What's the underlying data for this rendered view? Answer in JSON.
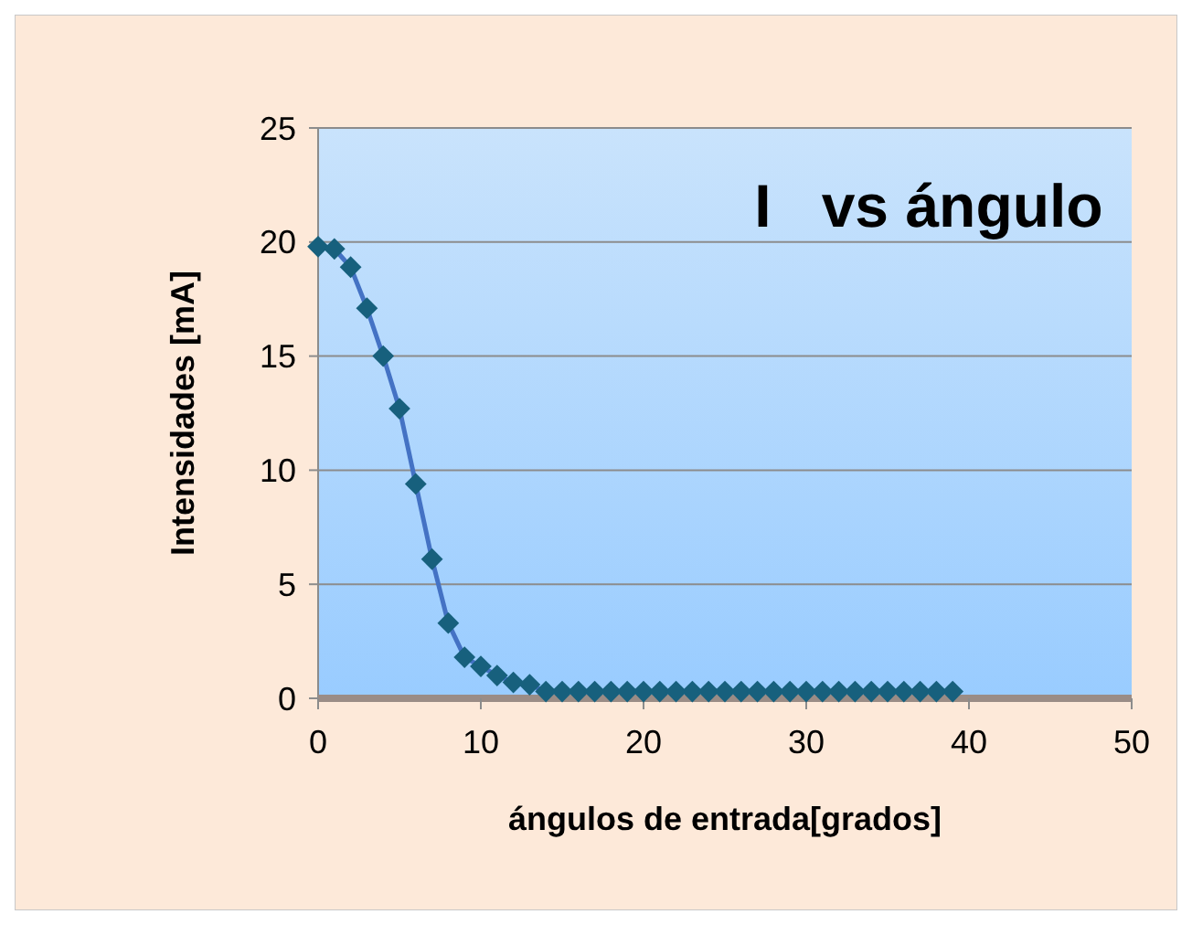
{
  "chart_data": {
    "type": "line",
    "title": "I   vs ángulo",
    "xlabel": "ángulos de entrada[grados]",
    "ylabel": "Intensidades [mA]",
    "x": [
      0,
      1,
      2,
      3,
      4,
      5,
      6,
      7,
      8,
      9,
      10,
      11,
      12,
      13,
      14,
      15,
      16,
      17,
      18,
      19,
      20,
      21,
      22,
      23,
      24,
      25,
      26,
      27,
      28,
      29,
      30,
      31,
      32,
      33,
      34,
      35,
      36,
      37,
      38,
      39
    ],
    "series": [
      {
        "color": "#17607d",
        "values": [
          19.8,
          19.7,
          18.9,
          17.1,
          15.0,
          12.7,
          9.4,
          6.1,
          3.3,
          1.8,
          1.4,
          1.0,
          0.7,
          0.6,
          0.3,
          0.3,
          0.3,
          0.3,
          0.3,
          0.3,
          0.3,
          0.3,
          0.3,
          0.3,
          0.3,
          0.3,
          0.3,
          0.3,
          0.3,
          0.3,
          0.3,
          0.3,
          0.3,
          0.3,
          0.3,
          0.3,
          0.3,
          0.3,
          0.3,
          0.3
        ]
      }
    ],
    "xlim": [
      0,
      50
    ],
    "xticks": [
      0,
      10,
      20,
      30,
      40,
      50
    ],
    "ylim": [
      0,
      25
    ],
    "yticks": [
      0,
      5,
      10,
      15,
      20,
      25
    ],
    "grid": "y",
    "marker": "diamond",
    "line_style": "solid"
  }
}
